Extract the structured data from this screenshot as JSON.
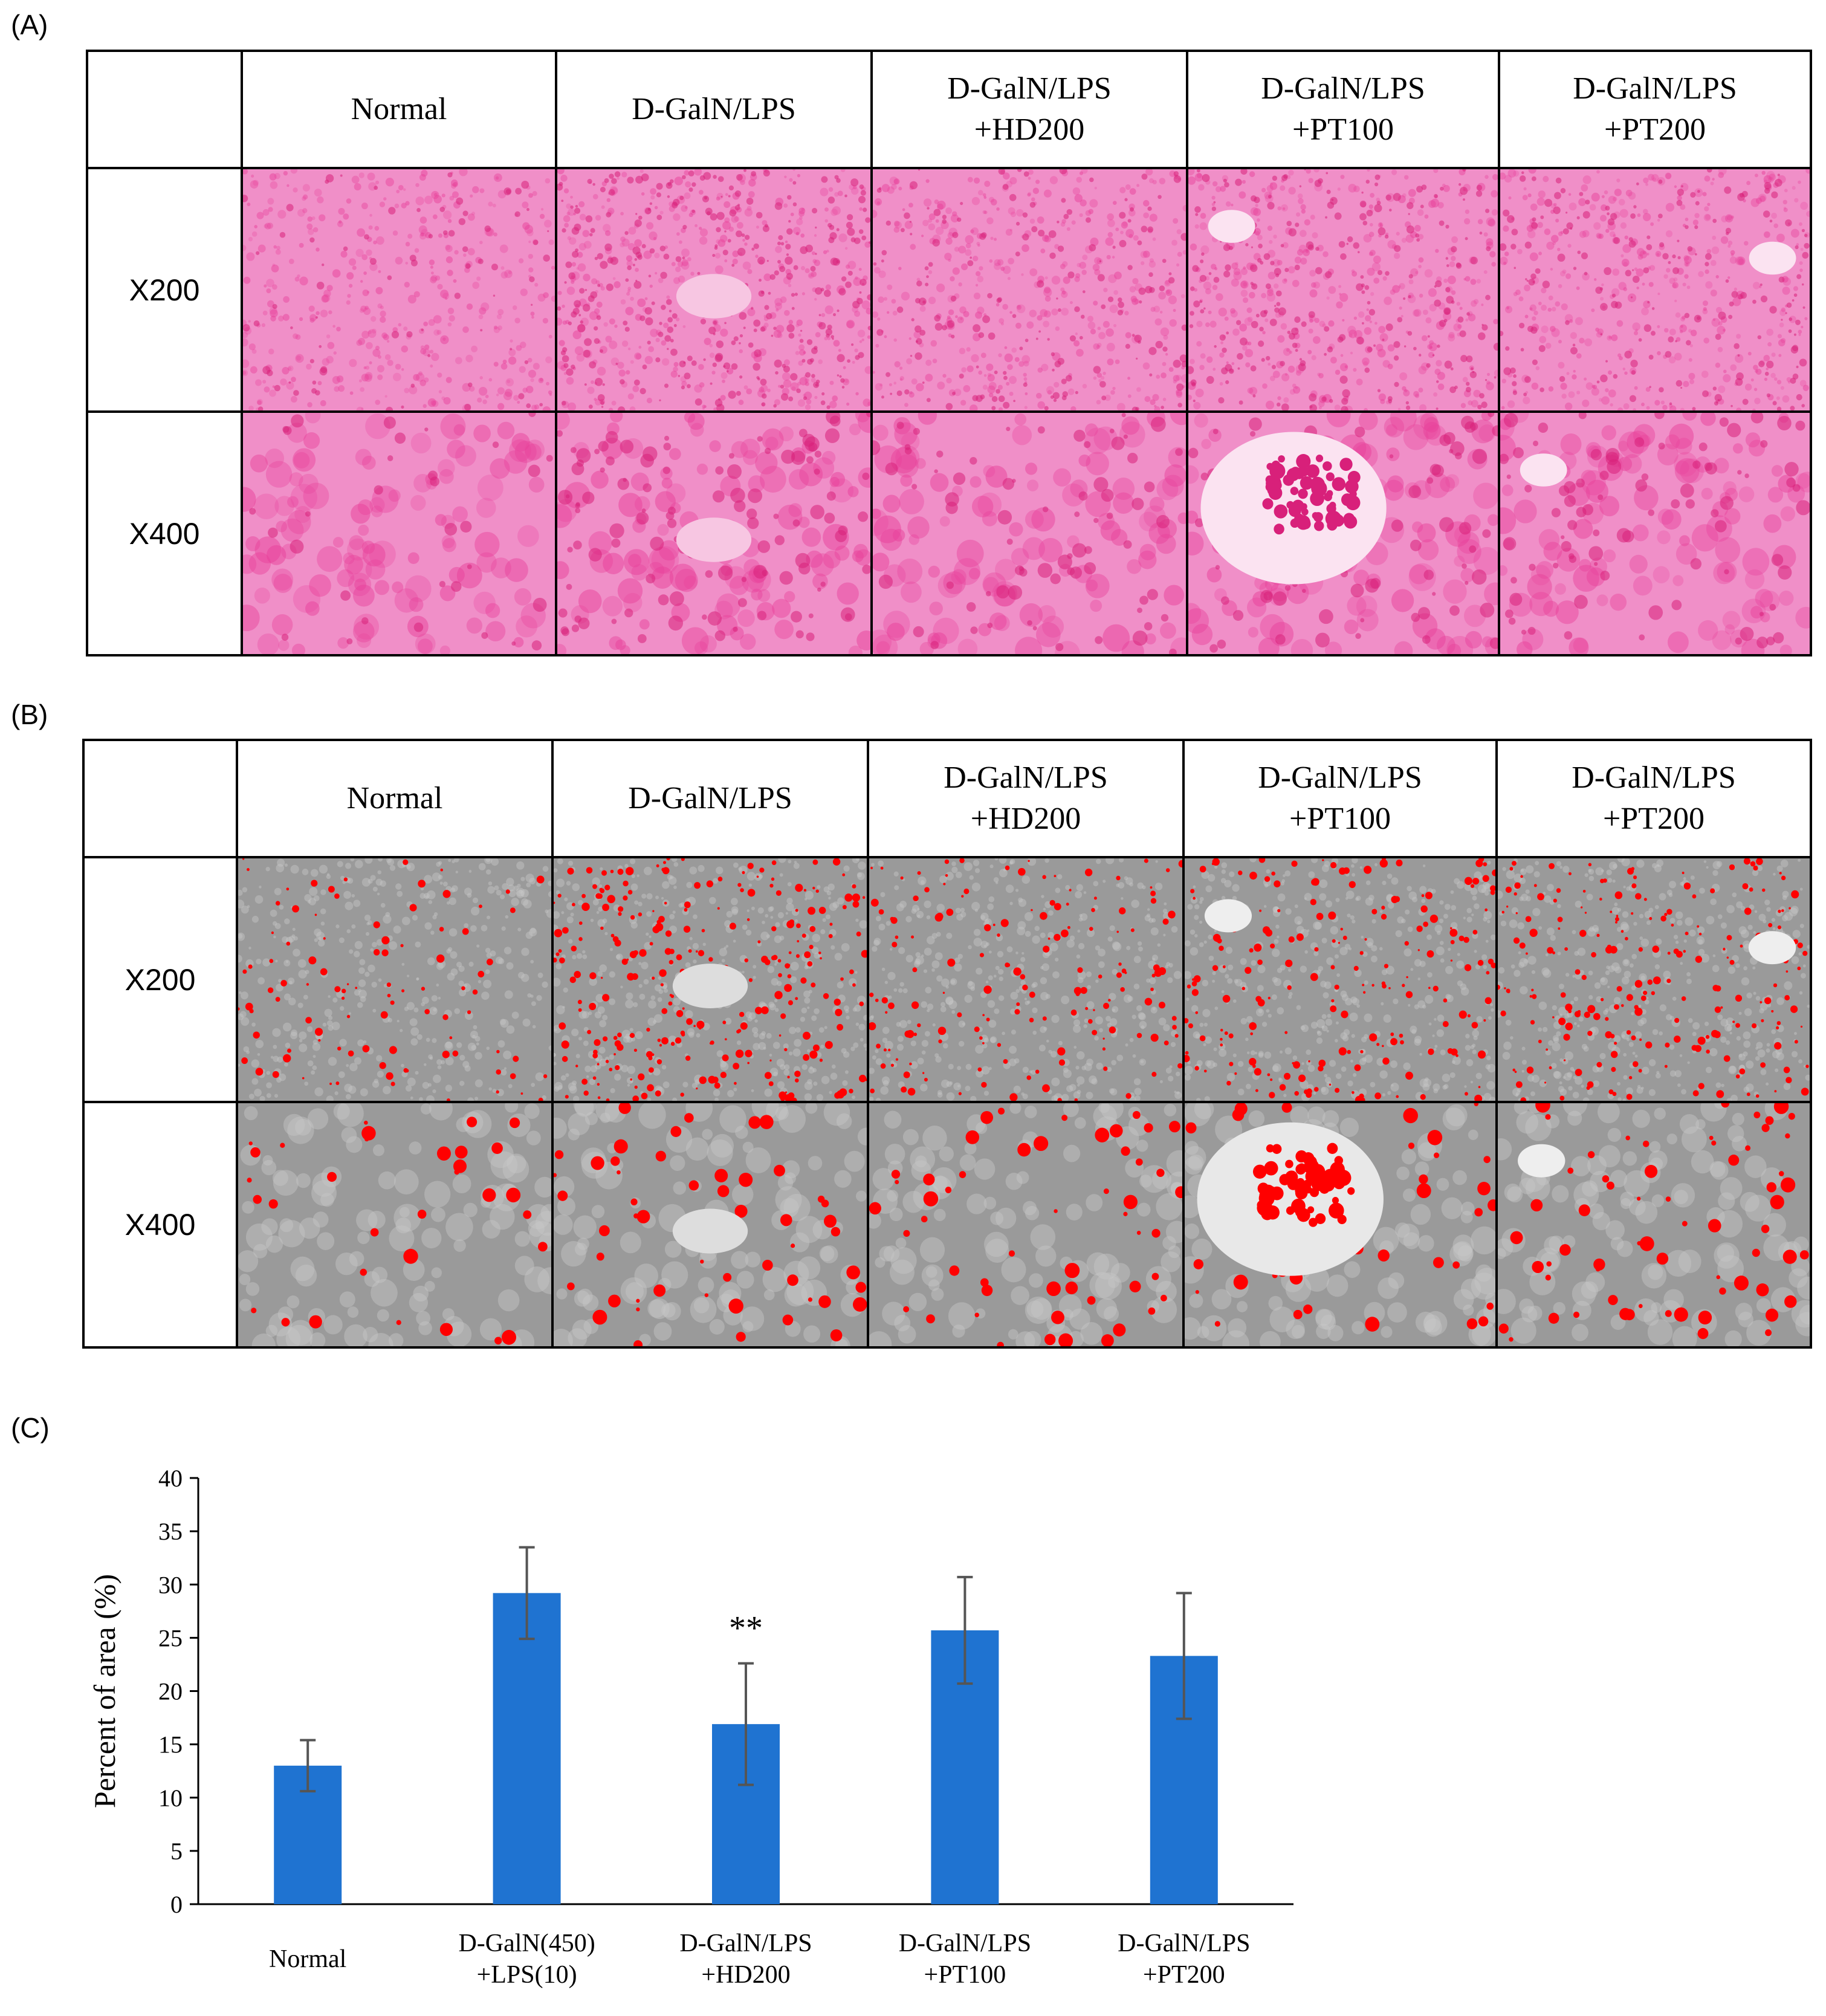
{
  "panels": {
    "a": {
      "label": "(A)"
    },
    "b": {
      "label": "(B)"
    },
    "c": {
      "label": "(C)"
    }
  },
  "columns": [
    {
      "line1": "Normal",
      "line2": ""
    },
    {
      "line1": "D-GalN/LPS",
      "line2": ""
    },
    {
      "line1": "D-GalN/LPS",
      "line2": "+HD200"
    },
    {
      "line1": "D-GalN/LPS",
      "line2": "+PT100"
    },
    {
      "line1": "D-GalN/LPS",
      "line2": "+PT200"
    }
  ],
  "rows": [
    "X200",
    "X400"
  ],
  "colors": {
    "he_bg": "#f08fc8",
    "he_cell": "#e8409a",
    "he_dark": "#d8207a",
    "mask_bg": "#9a9a9a",
    "mask_light": "#c8c8c8",
    "mask_red": "#ff0000",
    "bar": "#1f73d1",
    "error": "#555555"
  },
  "chart_data": {
    "type": "bar",
    "categories": [
      {
        "line1": "Normal",
        "line2": ""
      },
      {
        "line1": "D-GalN(450)",
        "line2": "+LPS(10)"
      },
      {
        "line1": "D-GalN/LPS",
        "line2": "+HD200"
      },
      {
        "line1": "D-GalN/LPS",
        "line2": "+PT100"
      },
      {
        "line1": "D-GalN/LPS",
        "line2": "+PT200"
      }
    ],
    "values": [
      13.0,
      29.2,
      16.9,
      25.7,
      23.3
    ],
    "errors": [
      2.4,
      4.3,
      5.7,
      5.0,
      5.9
    ],
    "annotations": [
      "",
      "",
      "**",
      "",
      ""
    ],
    "ylabel": "Percent of area (%)",
    "ylim": [
      0,
      40
    ],
    "yticks": [
      "0",
      "5",
      "10",
      "15",
      "20",
      "25",
      "30",
      "35",
      "40"
    ]
  }
}
